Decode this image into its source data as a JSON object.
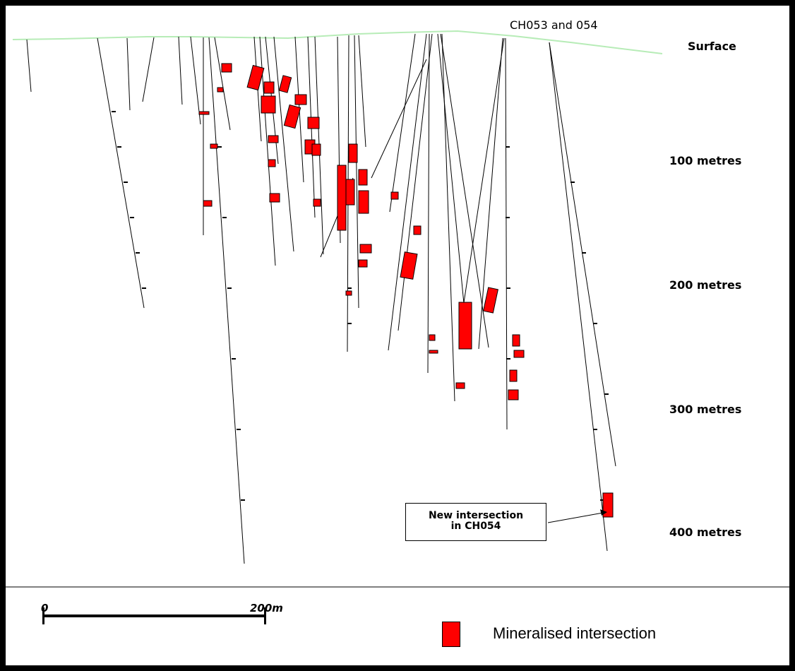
{
  "labels": {
    "surface": "Surface",
    "hole_callout": "CH053 and 054",
    "depth_100": "100 metres",
    "depth_200": "200 metres",
    "depth_300": "300 metres",
    "depth_400": "400 metres"
  },
  "callout": {
    "line1": "New intersection",
    "line2": "in CH054"
  },
  "scale": {
    "start": "0",
    "end": "200m"
  },
  "legend": {
    "label": "Mineralised intersection",
    "color": "#ff0000"
  },
  "colors": {
    "surface_line": "#b7ecb7",
    "drill_trace": "#000000",
    "intersection": "#ff0000"
  }
}
